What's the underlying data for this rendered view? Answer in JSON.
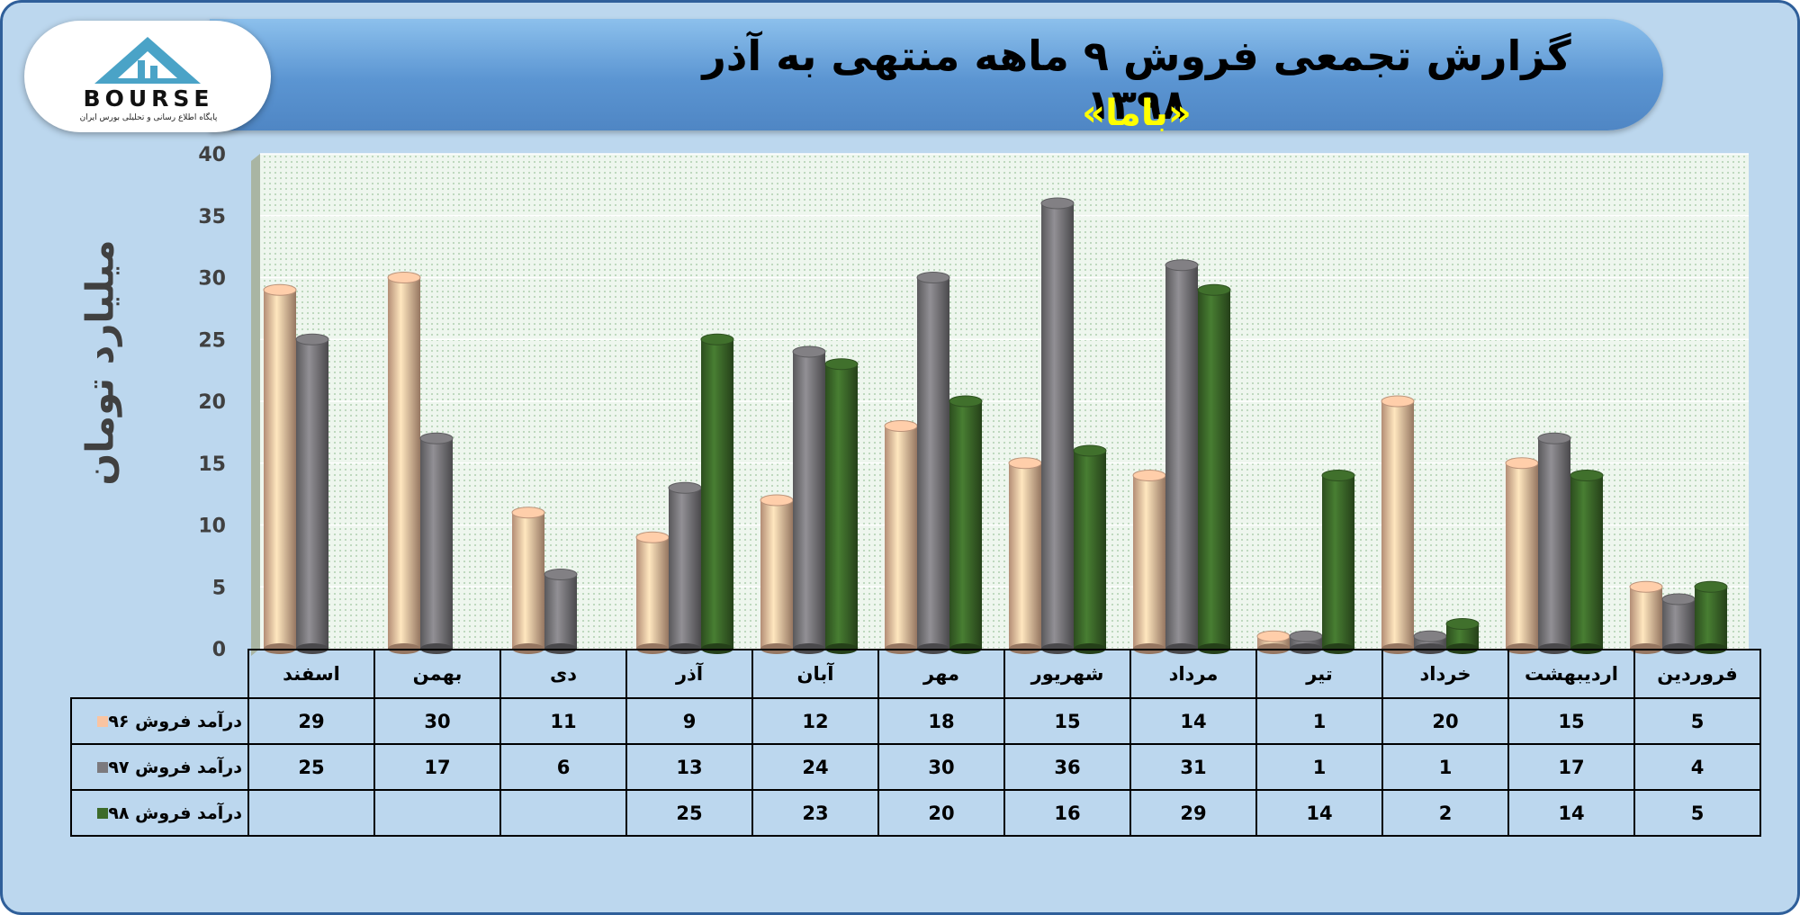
{
  "header": {
    "title": "گزارش تجمعی فروش ۹ ماهه منتهی به آذر ۱۳۹۸",
    "subtitle": "«باما»"
  },
  "logo": {
    "wordmark": "BOURSE",
    "tagline": "پایگاه اطلاع رسانی و تحلیلی بورس ایران"
  },
  "colors": {
    "series_96": "#f9c4a2",
    "series_97": "#7c7a7e",
    "series_98": "#3d6b2a",
    "banner": "#5b95d2",
    "background": "#bcd7ee",
    "plot_area": "#eef6ee"
  },
  "chart_data": {
    "type": "bar",
    "title": "",
    "ylabel": "میلیارد تومان",
    "xlabel": "",
    "ylim": [
      0,
      40
    ],
    "ytick_step": 5,
    "grid": true,
    "legend": "table",
    "categories": [
      "فروردین",
      "اردیبهشت",
      "خرداد",
      "تیر",
      "مرداد",
      "شهریور",
      "مهر",
      "آبان",
      "آذر",
      "دی",
      "بهمن",
      "اسفند"
    ],
    "series": [
      {
        "name": "درآمد فروش ۹۶",
        "color": "#f9c4a2",
        "values": [
          5,
          15,
          20,
          1,
          14,
          15,
          18,
          12,
          9,
          11,
          30,
          29
        ]
      },
      {
        "name": "درآمد فروش ۹۷",
        "color": "#7c7a7e",
        "values": [
          4,
          17,
          1,
          1,
          31,
          36,
          30,
          24,
          13,
          6,
          17,
          25
        ]
      },
      {
        "name": "درآمد فروش ۹۸",
        "color": "#3d6b2a",
        "values": [
          5,
          14,
          2,
          14,
          29,
          16,
          20,
          23,
          25,
          null,
          null,
          null
        ]
      }
    ]
  }
}
